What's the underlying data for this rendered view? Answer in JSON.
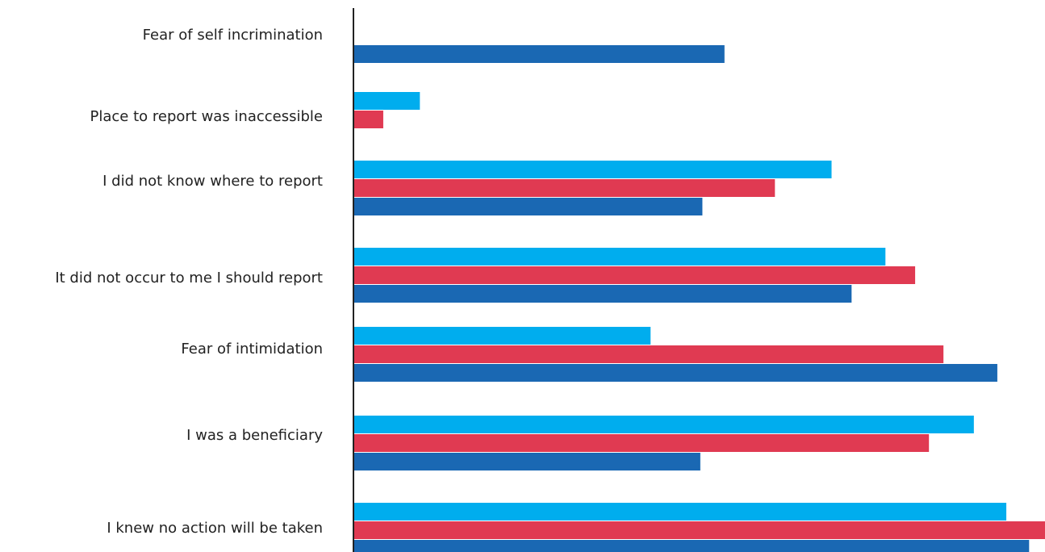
{
  "chart_data": {
    "type": "hbar",
    "categories": [
      "Fear of self incrimination",
      "Place to report was inaccessible",
      "I did not know where to report",
      "It did not occur to me I should report",
      "Fear of intimidation",
      "I was a beneficiary",
      "I knew no action will be taken"
    ],
    "series": [
      {
        "color": "#00adee",
        "values": [
          null,
          9.5,
          69.1,
          76.9,
          42.9,
          89.7,
          94.4
        ]
      },
      {
        "color": "#e03a52",
        "values": [
          null,
          4.2,
          60.9,
          81.2,
          85.3,
          83.2,
          100
        ]
      },
      {
        "color": "#1a68b3",
        "values": [
          53.6,
          null,
          50.4,
          72.0,
          93.1,
          50.1,
          97.7
        ]
      }
    ],
    "xlim": [
      0,
      100
    ]
  }
}
